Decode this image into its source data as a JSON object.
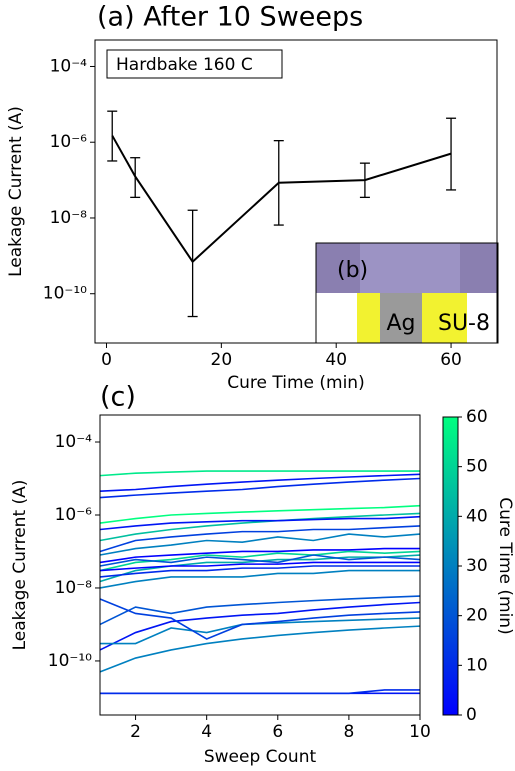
{
  "chart_data": [
    {
      "type": "errorline",
      "title": "(a) After 10 Sweeps",
      "xlabel": "Cure Time (min)",
      "ylabel": "Leakage Current (A)",
      "annotation": "Hardbake 160 C",
      "inset_labels": [
        "(b)",
        "Ag",
        "SU-8"
      ],
      "log_y": true,
      "color": "#000000",
      "x": [
        1,
        5,
        15,
        30,
        45,
        60
      ],
      "values": [
        1.5e-06,
        1.25e-07,
        7e-10,
        8.5e-08,
        1e-07,
        5e-07
      ],
      "error_low": [
        3.2e-07,
        3.5e-08,
        2.5e-11,
        6.5e-09,
        3.5e-08,
        5.5e-08
      ],
      "error_high": [
        6.6e-06,
        3.9e-07,
        1.6e-08,
        1.1e-06,
        2.8e-07,
        4.3e-06
      ],
      "xlim": [
        -2,
        68
      ],
      "xticks": [
        0,
        20,
        40,
        60
      ],
      "ylim": [
        5e-12,
        0.0005
      ],
      "yticks": [
        {
          "value": 1e-10,
          "label": "10⁻¹⁰"
        },
        {
          "value": 1e-08,
          "label": "10⁻⁸"
        },
        {
          "value": 1e-06,
          "label": "10⁻⁶"
        },
        {
          "value": 0.0001,
          "label": "10⁻⁴"
        }
      ]
    },
    {
      "type": "multiline",
      "title": "(c)",
      "xlabel": "Sweep Count",
      "ylabel": "Leakage Current (A)",
      "log_y": true,
      "colormap": [
        "#0000ff",
        "#00ff80"
      ],
      "colorbar": {
        "label": "Cure Time (min)",
        "lim": [
          0,
          60
        ],
        "ticks": [
          0,
          10,
          20,
          30,
          40,
          50,
          60
        ]
      },
      "x": [
        1,
        2,
        3,
        4,
        5,
        6,
        7,
        8,
        9,
        10
      ],
      "series": [
        {
          "cure_time": 55,
          "values": [
            1.2e-05,
            1.4e-05,
            1.5e-05,
            1.6e-05,
            1.6e-05,
            1.6e-05,
            1.6e-05,
            1.6e-05,
            1.6e-05,
            1.6e-05
          ]
        },
        {
          "cure_time": 5,
          "values": [
            4.5e-06,
            5e-06,
            6e-06,
            7e-06,
            8e-06,
            9e-06,
            1e-05,
            1.1e-05,
            1.2e-05,
            1.3e-05
          ]
        },
        {
          "cure_time": 10,
          "values": [
            3e-06,
            3.5e-06,
            4e-06,
            4.5e-06,
            5e-06,
            6e-06,
            7e-06,
            8e-06,
            9e-06,
            1e-05
          ]
        },
        {
          "cure_time": 60,
          "values": [
            6e-07,
            8e-07,
            1e-06,
            1.1e-06,
            1.2e-06,
            1.3e-06,
            1.4e-06,
            1.5e-06,
            1.6e-06,
            1.8e-06
          ]
        },
        {
          "cure_time": 45,
          "values": [
            2e-07,
            3e-07,
            4e-07,
            5e-07,
            6e-07,
            7e-07,
            8e-07,
            9e-07,
            1e-06,
            1.1e-06
          ]
        },
        {
          "cure_time": 5,
          "values": [
            4e-07,
            5e-07,
            6e-07,
            6.5e-07,
            7e-07,
            7e-07,
            7.5e-07,
            8e-07,
            8e-07,
            9e-07
          ]
        },
        {
          "cure_time": 15,
          "values": [
            1e-07,
            2e-07,
            2.5e-07,
            3e-07,
            3.5e-07,
            3.5e-07,
            4e-07,
            4e-07,
            4.5e-07,
            5e-07
          ]
        },
        {
          "cure_time": 30,
          "values": [
            8e-08,
            1.2e-07,
            1.5e-07,
            2e-07,
            1.8e-07,
            2.5e-07,
            2e-07,
            3e-07,
            2.5e-07,
            3e-07
          ]
        },
        {
          "cure_time": 0,
          "values": [
            5e-08,
            7e-08,
            8e-08,
            9e-08,
            1e-07,
            1e-07,
            1.1e-07,
            1.1e-07,
            1.2e-07,
            1.2e-07
          ]
        },
        {
          "cure_time": 50,
          "values": [
            3e-08,
            5e-08,
            6e-08,
            8e-08,
            7e-08,
            9e-08,
            8e-08,
            1e-07,
            9e-08,
            1e-07
          ]
        },
        {
          "cure_time": 40,
          "values": [
            1.5e-08,
            3e-08,
            4e-08,
            5e-08,
            5e-08,
            6e-08,
            6e-08,
            7e-08,
            7e-08,
            8e-08
          ]
        },
        {
          "cure_time": 20,
          "values": [
            4e-08,
            6e-08,
            5e-08,
            7e-08,
            6e-08,
            5e-08,
            8e-08,
            6e-08,
            7e-08,
            6e-08
          ]
        },
        {
          "cure_time": 0,
          "values": [
            3e-08,
            3.5e-08,
            4e-08,
            4e-08,
            4.5e-08,
            4.5e-08,
            5e-08,
            5e-08,
            5e-08,
            5e-08
          ]
        },
        {
          "cure_time": 10,
          "values": [
            2e-08,
            2.5e-08,
            3e-08,
            3e-08,
            3.5e-08,
            3.5e-08,
            4e-08,
            4e-08,
            4e-08,
            4e-08
          ]
        },
        {
          "cure_time": 30,
          "values": [
            1e-08,
            1.5e-08,
            2e-08,
            2e-08,
            2e-08,
            2.5e-08,
            2.5e-08,
            3e-08,
            3e-08,
            3e-08
          ]
        },
        {
          "cure_time": 20,
          "values": [
            1e-09,
            3e-09,
            2e-09,
            3e-09,
            3.5e-09,
            4e-09,
            4.5e-09,
            5e-09,
            5.5e-09,
            6e-09
          ]
        },
        {
          "cure_time": 5,
          "values": [
            2e-10,
            6e-10,
            1.2e-09,
            1.5e-09,
            1.8e-09,
            2e-09,
            2.5e-09,
            3e-09,
            3.5e-09,
            4e-09
          ]
        },
        {
          "cure_time": 30,
          "values": [
            3e-10,
            3e-10,
            8e-10,
            6e-10,
            1e-09,
            1.1e-09,
            1.2e-09,
            1.3e-09,
            1.4e-09,
            1.5e-09
          ]
        },
        {
          "cure_time": 15,
          "values": [
            5e-09,
            2e-09,
            1.5e-09,
            4e-10,
            1e-09,
            1.2e-09,
            1.5e-09,
            1.8e-09,
            2e-09,
            2.2e-09
          ]
        },
        {
          "cure_time": 30,
          "values": [
            5e-11,
            1.2e-10,
            2e-10,
            3e-10,
            4e-10,
            5e-10,
            6e-10,
            7e-10,
            8e-10,
            9e-10
          ]
        },
        {
          "cure_time": 5,
          "values": [
            1.3e-11,
            1.3e-11,
            1.3e-11,
            1.3e-11,
            1.3e-11,
            1.3e-11,
            1.3e-11,
            1.3e-11,
            1.3e-11,
            1.3e-11
          ]
        },
        {
          "cure_time": 10,
          "values": [
            1.3e-11,
            1.3e-11,
            1.3e-11,
            1.3e-11,
            1.3e-11,
            1.3e-11,
            1.3e-11,
            1.3e-11,
            1.6e-11,
            1.6e-11
          ]
        }
      ],
      "xlim": [
        1,
        10
      ],
      "xticks": [
        2,
        4,
        6,
        8,
        10
      ],
      "ylim": [
        3.3e-12,
        0.00055
      ],
      "yticks": [
        {
          "value": 1e-10,
          "label": "10⁻¹⁰"
        },
        {
          "value": 1e-08,
          "label": "10⁻⁸"
        },
        {
          "value": 1e-06,
          "label": "10⁻⁶"
        },
        {
          "value": 0.0001,
          "label": "10⁻⁴"
        }
      ]
    }
  ]
}
